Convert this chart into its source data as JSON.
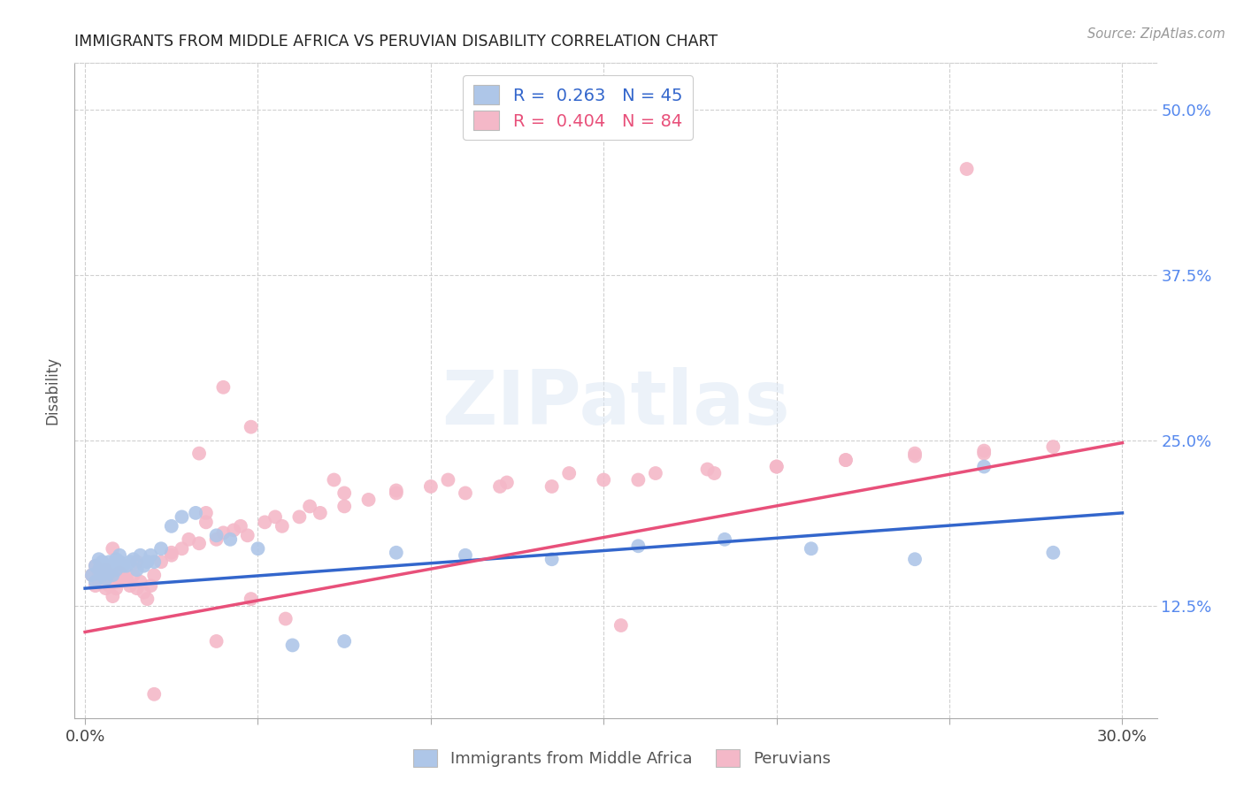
{
  "title": "IMMIGRANTS FROM MIDDLE AFRICA VS PERUVIAN DISABILITY CORRELATION CHART",
  "source": "Source: ZipAtlas.com",
  "ylabel_label": "Disability",
  "xlim": [
    -0.003,
    0.31
  ],
  "ylim": [
    0.04,
    0.535
  ],
  "xticks": [
    0.0,
    0.05,
    0.1,
    0.15,
    0.2,
    0.25,
    0.3
  ],
  "xtick_labels": [
    "0.0%",
    "",
    "",
    "",
    "",
    "",
    "30.0%"
  ],
  "ytick_labels": [
    "12.5%",
    "25.0%",
    "37.5%",
    "50.0%"
  ],
  "yticks": [
    0.125,
    0.25,
    0.375,
    0.5
  ],
  "blue_color": "#aec6e8",
  "pink_color": "#f4b8c8",
  "blue_line_color": "#3366cc",
  "pink_line_color": "#e8507a",
  "legend_blue_label": "R =  0.263   N = 45",
  "legend_pink_label": "R =  0.404   N = 84",
  "blue_trend_x0": 0.0,
  "blue_trend_y0": 0.138,
  "blue_trend_x1": 0.3,
  "blue_trend_y1": 0.195,
  "pink_trend_x0": 0.0,
  "pink_trend_y0": 0.105,
  "pink_trend_x1": 0.3,
  "pink_trend_y1": 0.248,
  "blue_scatter_x": [
    0.002,
    0.003,
    0.003,
    0.004,
    0.004,
    0.005,
    0.005,
    0.006,
    0.006,
    0.007,
    0.007,
    0.008,
    0.008,
    0.009,
    0.009,
    0.01,
    0.01,
    0.011,
    0.012,
    0.013,
    0.014,
    0.015,
    0.016,
    0.017,
    0.018,
    0.019,
    0.02,
    0.022,
    0.025,
    0.028,
    0.032,
    0.038,
    0.042,
    0.05,
    0.06,
    0.075,
    0.09,
    0.11,
    0.135,
    0.16,
    0.185,
    0.21,
    0.24,
    0.26,
    0.28
  ],
  "blue_scatter_y": [
    0.148,
    0.155,
    0.143,
    0.152,
    0.16,
    0.148,
    0.158,
    0.153,
    0.145,
    0.158,
    0.15,
    0.155,
    0.148,
    0.16,
    0.152,
    0.158,
    0.163,
    0.155,
    0.155,
    0.158,
    0.16,
    0.152,
    0.163,
    0.155,
    0.158,
    0.163,
    0.158,
    0.168,
    0.185,
    0.192,
    0.195,
    0.178,
    0.175,
    0.168,
    0.095,
    0.098,
    0.165,
    0.163,
    0.16,
    0.17,
    0.175,
    0.168,
    0.16,
    0.23,
    0.165
  ],
  "pink_scatter_x": [
    0.002,
    0.003,
    0.003,
    0.004,
    0.004,
    0.005,
    0.005,
    0.006,
    0.006,
    0.007,
    0.007,
    0.008,
    0.008,
    0.009,
    0.009,
    0.01,
    0.01,
    0.011,
    0.012,
    0.013,
    0.014,
    0.015,
    0.016,
    0.017,
    0.018,
    0.019,
    0.02,
    0.022,
    0.025,
    0.028,
    0.03,
    0.033,
    0.035,
    0.038,
    0.04,
    0.043,
    0.047,
    0.052,
    0.057,
    0.062,
    0.068,
    0.075,
    0.082,
    0.09,
    0.1,
    0.11,
    0.122,
    0.135,
    0.15,
    0.165,
    0.182,
    0.2,
    0.22,
    0.24,
    0.26,
    0.28,
    0.008,
    0.015,
    0.025,
    0.035,
    0.045,
    0.055,
    0.065,
    0.075,
    0.09,
    0.105,
    0.12,
    0.14,
    0.16,
    0.18,
    0.2,
    0.22,
    0.24,
    0.26,
    0.048,
    0.058,
    0.033,
    0.048,
    0.04,
    0.072,
    0.038,
    0.02,
    0.155,
    0.255
  ],
  "pink_scatter_y": [
    0.148,
    0.155,
    0.14,
    0.15,
    0.143,
    0.145,
    0.148,
    0.152,
    0.138,
    0.145,
    0.14,
    0.148,
    0.132,
    0.143,
    0.138,
    0.15,
    0.143,
    0.148,
    0.145,
    0.14,
    0.148,
    0.138,
    0.143,
    0.135,
    0.13,
    0.14,
    0.148,
    0.158,
    0.165,
    0.168,
    0.175,
    0.172,
    0.188,
    0.175,
    0.18,
    0.182,
    0.178,
    0.188,
    0.185,
    0.192,
    0.195,
    0.2,
    0.205,
    0.21,
    0.215,
    0.21,
    0.218,
    0.215,
    0.22,
    0.225,
    0.225,
    0.23,
    0.235,
    0.24,
    0.24,
    0.245,
    0.168,
    0.158,
    0.163,
    0.195,
    0.185,
    0.192,
    0.2,
    0.21,
    0.212,
    0.22,
    0.215,
    0.225,
    0.22,
    0.228,
    0.23,
    0.235,
    0.238,
    0.242,
    0.13,
    0.115,
    0.24,
    0.26,
    0.29,
    0.22,
    0.098,
    0.058,
    0.11,
    0.455
  ],
  "watermark_text": "ZIPatlas",
  "background_color": "#ffffff",
  "grid_color": "#d0d0d0"
}
